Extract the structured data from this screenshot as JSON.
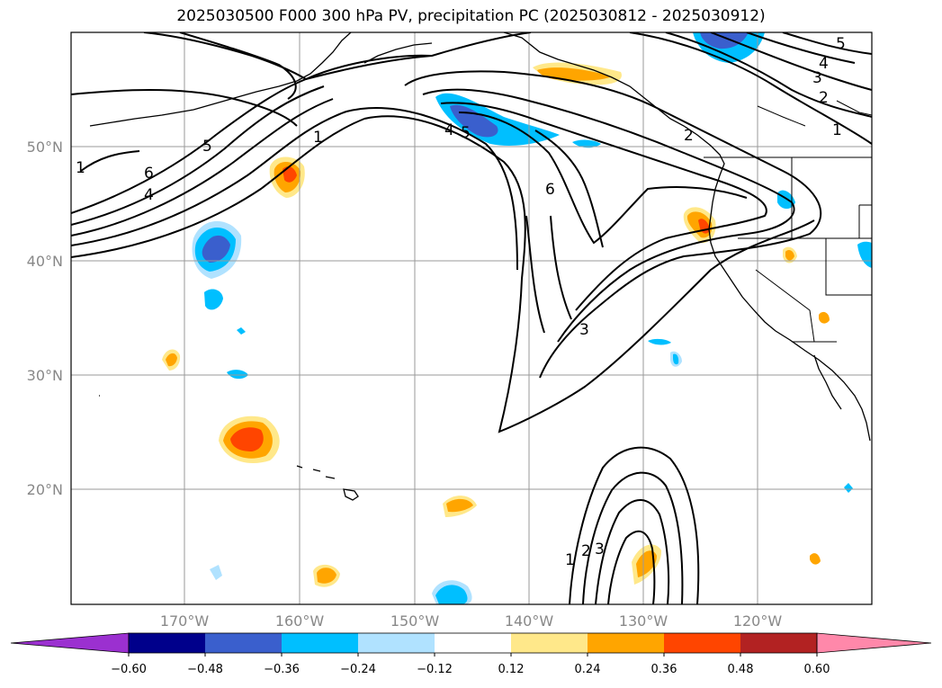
{
  "title": "2025030500 F000 300 hPa PV, precipitation PC (2025030812 - 2025030912)",
  "map": {
    "lat_labels": [
      "50°N",
      "40°N",
      "30°N",
      "20°N"
    ],
    "lon_labels": [
      "170°W",
      "160°W",
      "150°W",
      "140°W",
      "130°W",
      "120°W"
    ],
    "contour_labels": [
      "1",
      "6",
      "4",
      "5",
      "1",
      "4",
      "5",
      "6",
      "3",
      "5",
      "4",
      "3",
      "2",
      "1",
      "2",
      "1",
      "2",
      "3"
    ]
  },
  "colorbar": {
    "ticks": [
      "−0.60",
      "−0.48",
      "−0.36",
      "−0.24",
      "−0.12",
      "0.12",
      "0.24",
      "0.36",
      "0.48",
      "0.60"
    ],
    "colors": [
      "#9b30d0",
      "#00008b",
      "#3a5fcd",
      "#00bfff",
      "#b0e2ff",
      "#ffffff",
      "#ffe88a",
      "#ffa500",
      "#ff4500",
      "#b22222",
      "#ff88aa"
    ]
  }
}
